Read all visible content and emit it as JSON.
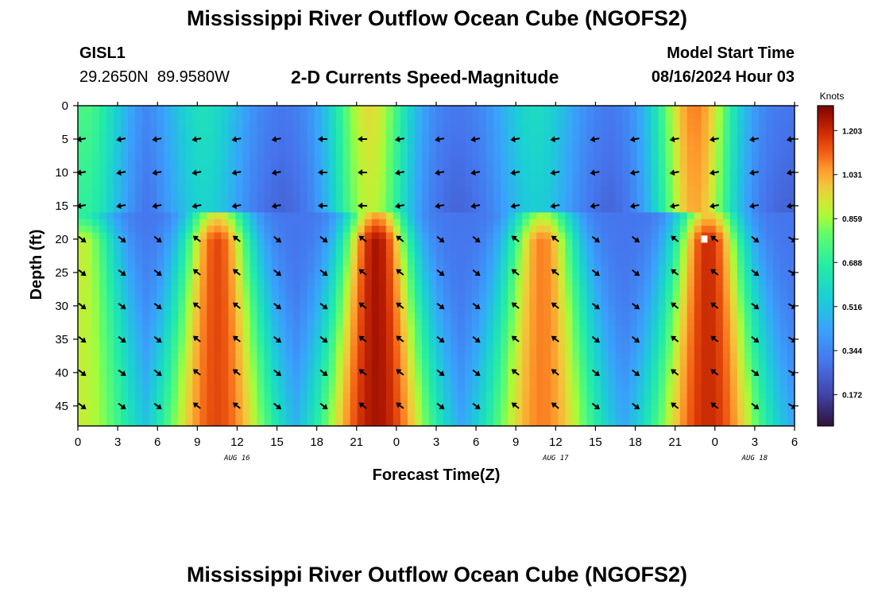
{
  "page": {
    "title": "Mississippi River Outflow Ocean Cube (NGOFS2)",
    "title_repeat": "Mississippi River Outflow Ocean Cube (NGOFS2)",
    "station_id": "GISL1",
    "station_coords": "29.2650N  89.9580W",
    "panel_title": "2-D Currents Speed-Magnitude",
    "model_start_label": "Model Start Time",
    "model_start_value": "08/16/2024 Hour 03"
  },
  "chart_data": {
    "type": "heatmap",
    "title": "2-D Currents Speed-Magnitude",
    "xlabel": "Forecast Time(Z)",
    "ylabel": "Depth (ft)",
    "colorbar_label": "Knots",
    "colorbar_ticks": [
      "0.172",
      "0.344",
      "0.516",
      "0.688",
      "0.859",
      "1.031",
      "1.203"
    ],
    "colorbar_range": [
      0.05,
      1.3
    ],
    "x_range_hours": [
      0,
      54
    ],
    "x_tick_hours": [
      0,
      3,
      6,
      9,
      12,
      15,
      18,
      21,
      24,
      27,
      30,
      33,
      36,
      39,
      42,
      45,
      48,
      51,
      54
    ],
    "x_tick_labels": [
      "0",
      "3",
      "6",
      "9",
      "12",
      "15",
      "18",
      "21",
      "0",
      "3",
      "6",
      "9",
      "12",
      "15",
      "18",
      "21",
      "0",
      "3",
      "6"
    ],
    "date_labels": [
      {
        "hour": 12,
        "text": "AUG 16"
      },
      {
        "hour": 36,
        "text": "AUG 17"
      },
      {
        "hour": 51,
        "text": "AUG 18"
      }
    ],
    "y_range_ft": [
      0,
      48
    ],
    "y_ticks": [
      0,
      5,
      10,
      15,
      20,
      25,
      30,
      35,
      40,
      45
    ],
    "speed_peaks": {
      "surface_layer_0_15ft": [
        {
          "hour": 0.5,
          "knots": 0.75
        },
        {
          "hour": 9.5,
          "knots": 0.62
        },
        {
          "hour": 22,
          "knots": 0.95
        },
        {
          "hour": 34.5,
          "knots": 0.6
        },
        {
          "hour": 46.5,
          "knots": 1.08
        }
      ],
      "bottom_layer_16_48ft": [
        {
          "hour": 0.3,
          "knots": 0.9
        },
        {
          "hour": 10.5,
          "knots": 1.15
        },
        {
          "hour": 22.5,
          "knots": 1.25
        },
        {
          "hour": 35,
          "knots": 1.08
        },
        {
          "hour": 47.5,
          "knots": 1.2
        }
      ],
      "minima_knots": 0.3,
      "slack_hours": [
        18,
        18.5
      ]
    },
    "vector_depths_ft": [
      5,
      10,
      15,
      20,
      25,
      30,
      35,
      40,
      45
    ],
    "vector_hours": [
      0.3,
      3.3,
      6,
      9,
      12,
      15,
      18.5,
      21.5,
      24.3,
      27.3,
      30,
      33,
      36,
      39,
      42,
      45,
      48,
      51,
      53.8
    ],
    "surface_flow_direction": "westward",
    "subsurface_flow_direction": "alternating ebb (southeast) / flood (northwest)",
    "marker": {
      "hour": 47.2,
      "depth_ft": 20
    }
  }
}
